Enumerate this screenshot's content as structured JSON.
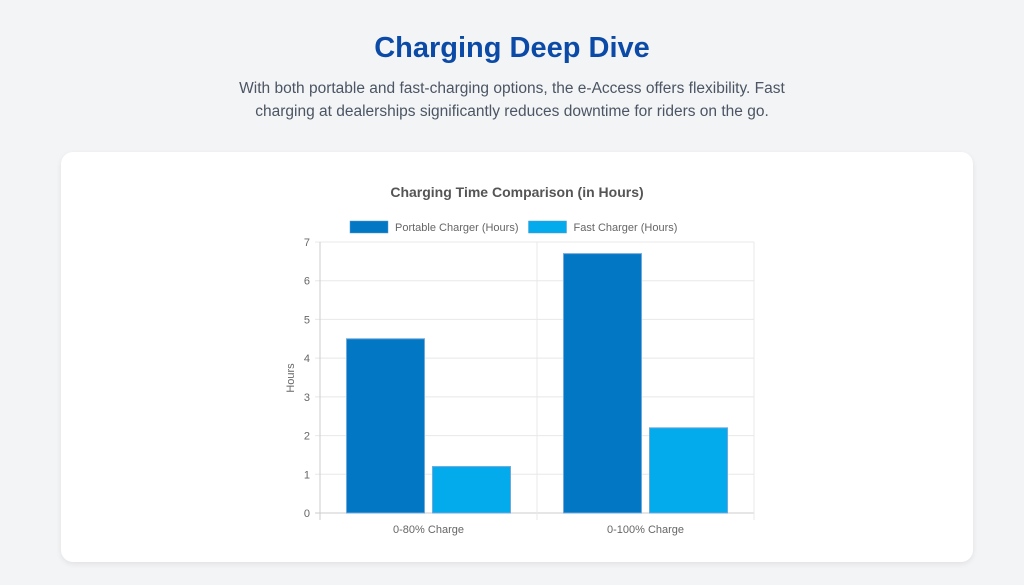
{
  "header": {
    "title": "Charging Deep Dive",
    "subtitle": "With both portable and fast-charging options, the e-Access offers flexibility. Fast charging at dealerships significantly reduces downtime for riders on the go."
  },
  "chart_data": {
    "type": "bar",
    "title": "Charging Time Comparison (in Hours)",
    "categories": [
      "0-80% Charge",
      "0-100% Charge"
    ],
    "series": [
      {
        "name": "Portable Charger (Hours)",
        "values": [
          4.5,
          6.7
        ],
        "color": "#0277c4"
      },
      {
        "name": "Fast Charger (Hours)",
        "values": [
          1.2,
          2.2
        ],
        "color": "#03aaec"
      }
    ],
    "xlabel": "",
    "ylabel": "Hours",
    "ylim": [
      0,
      7
    ],
    "yticks": [
      0,
      1,
      2,
      3,
      4,
      5,
      6,
      7
    ],
    "grid": true,
    "legend": "top"
  }
}
